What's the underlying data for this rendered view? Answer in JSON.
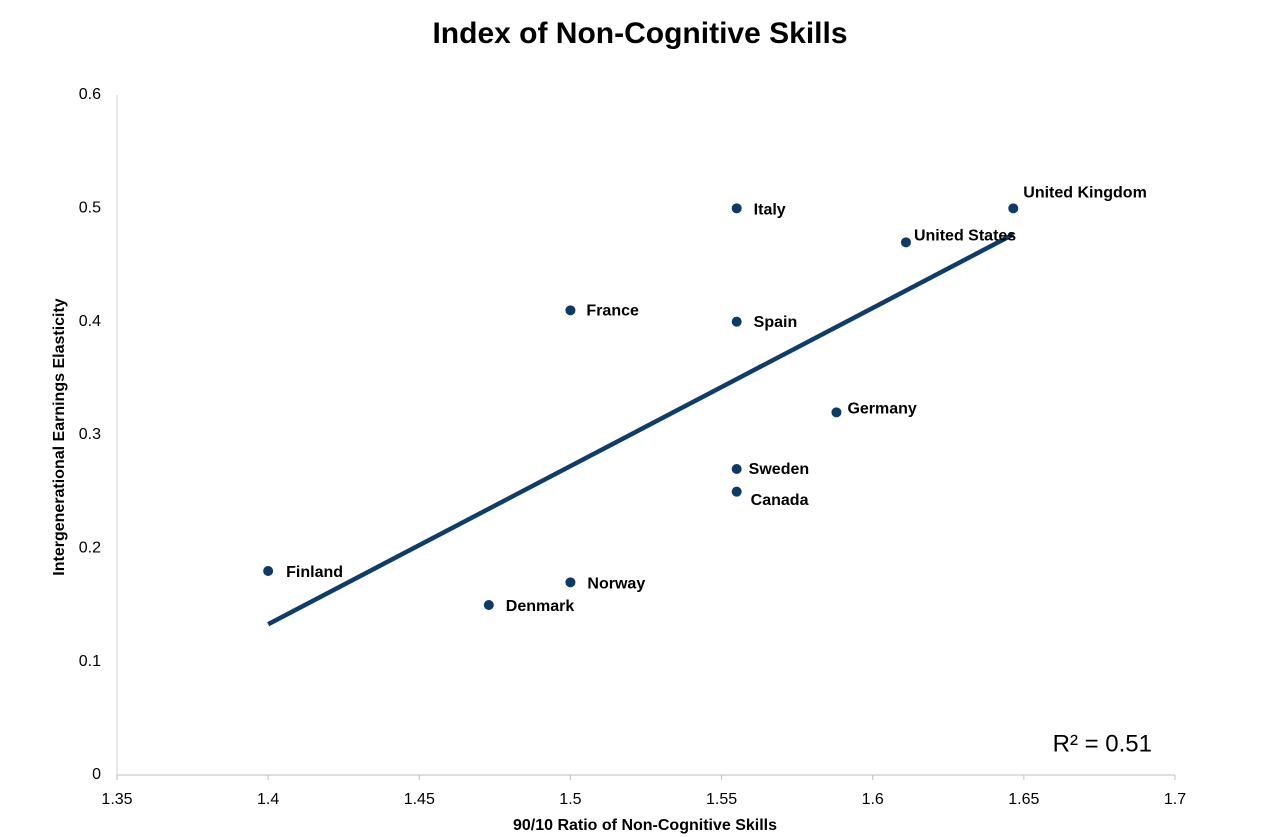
{
  "chart_data": {
    "type": "scatter",
    "title": "Index of Non-Cognitive Skills",
    "x_label": "90/10 Ratio of Non-Cognitive Skills",
    "y_label": "Intergenerational Earnings Elasticity",
    "annotation": "R² = 0.51",
    "color": "#0d3a66",
    "point_labels": [
      "Finland",
      "Denmark",
      "Norway",
      "France",
      "Italy",
      "Spain",
      "Sweden",
      "Canada",
      "Germany",
      "United States",
      "United Kingdom"
    ],
    "x": [
      1.4,
      1.473,
      1.5,
      1.5,
      1.555,
      1.555,
      1.555,
      1.555,
      1.588,
      1.611,
      1.6465
    ],
    "values": [
      0.18,
      0.15,
      0.17,
      0.41,
      0.5,
      0.4,
      0.27,
      0.25,
      0.32,
      0.47,
      0.5
    ],
    "trendline": {
      "x": [
        1.4,
        1.6465
      ],
      "values": [
        0.133,
        0.477
      ]
    },
    "xlim": [
      1.35,
      1.7
    ],
    "xticks": [
      1.35,
      1.4,
      1.45,
      1.5,
      1.55,
      1.6,
      1.65,
      1.7
    ],
    "ylim": [
      0,
      0.6
    ],
    "yticks": [
      0,
      0.1,
      0.2,
      0.3,
      0.4,
      0.5,
      0.6
    ],
    "grid": false
  }
}
